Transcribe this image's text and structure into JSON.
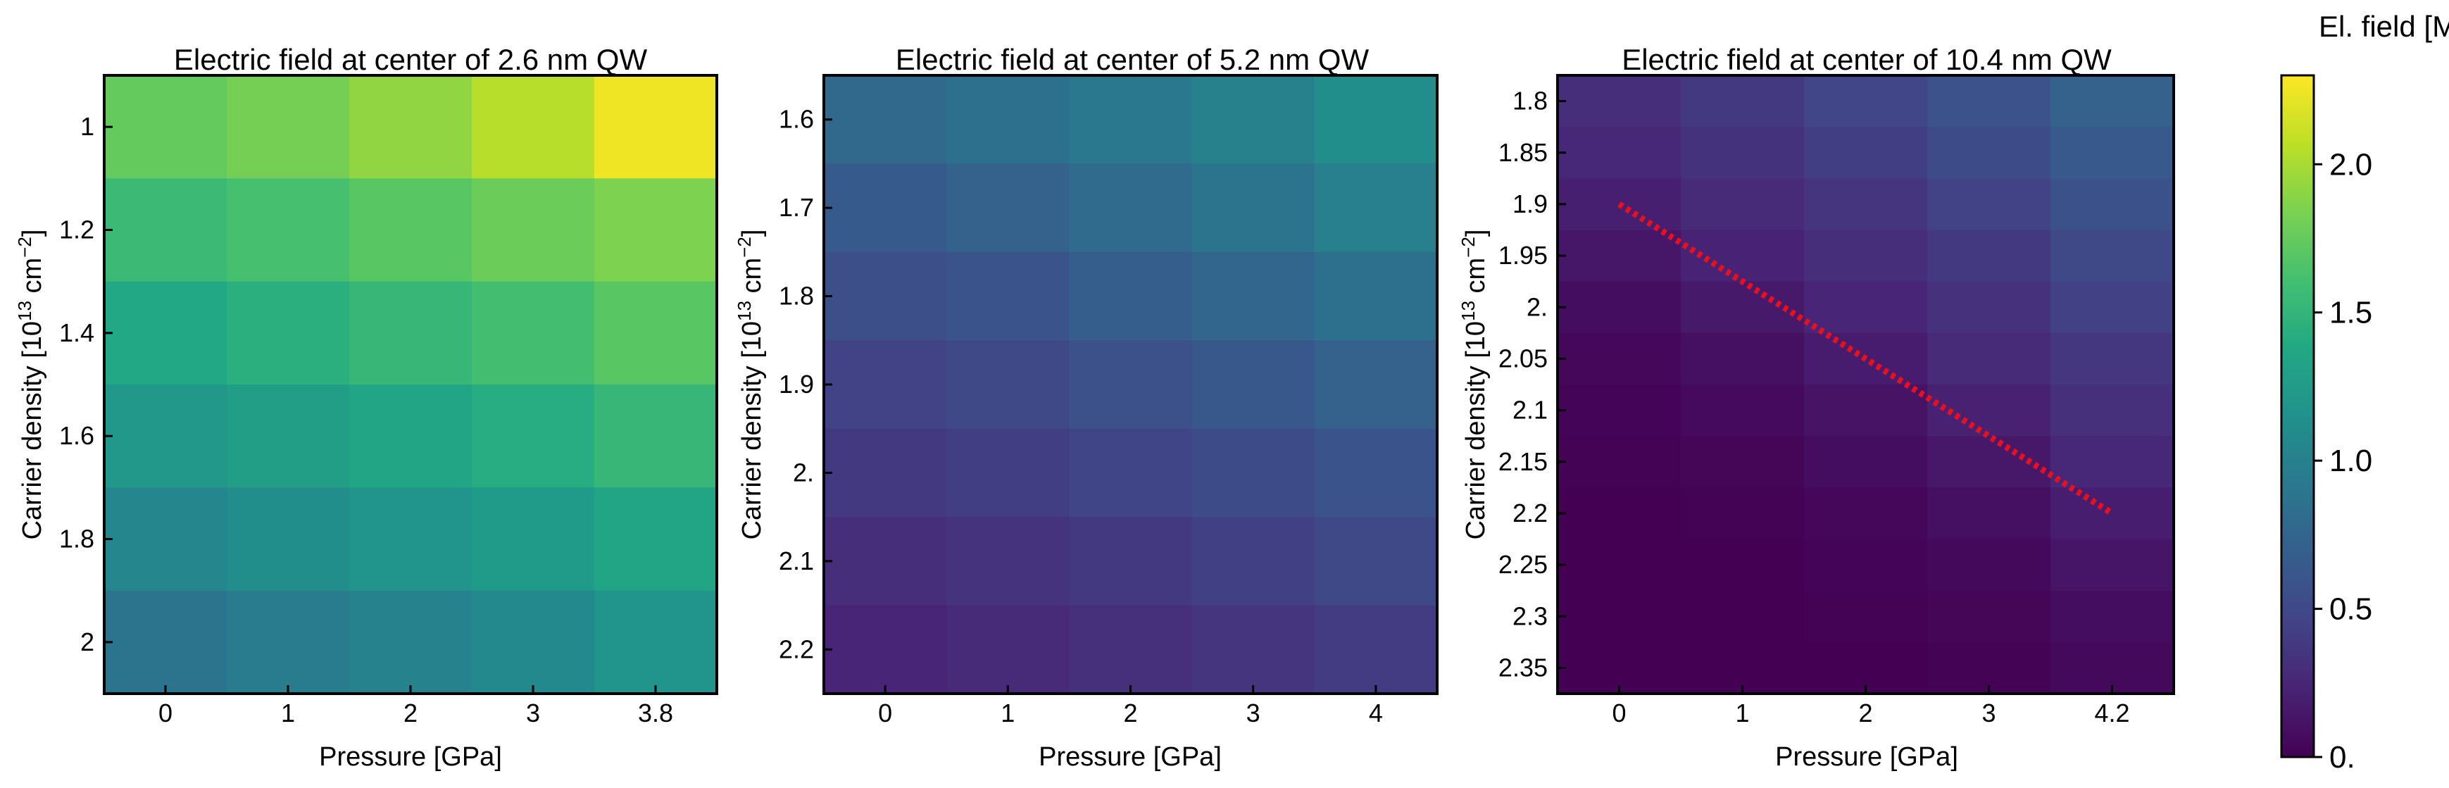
{
  "colorbar": {
    "label": "El. field [MV/cm]",
    "range": [
      0,
      2.3
    ],
    "ticks": [
      {
        "value": 0,
        "label": "0."
      },
      {
        "value": 0.5,
        "label": "0.5"
      },
      {
        "value": 1.0,
        "label": "1.0"
      },
      {
        "value": 1.5,
        "label": "1.5"
      },
      {
        "value": 2.0,
        "label": "2.0"
      }
    ],
    "colormap": "viridis"
  },
  "chart_data": [
    {
      "type": "heatmap",
      "title": "Electric field at center of 2.6 nm QW",
      "xlabel": "Pressure [GPa]",
      "ylabel_main": "Carrier density [10",
      "ylabel_exp1": "13",
      "ylabel_mid": " cm",
      "ylabel_exp2": "−2",
      "ylabel_end": "]",
      "x_categories": [
        "0",
        "1",
        "2",
        "3",
        "3.8"
      ],
      "y_categories": [
        "1",
        "1.2",
        "1.4",
        "1.6",
        "1.8",
        "2"
      ],
      "values": [
        [
          1.75,
          1.82,
          1.92,
          2.05,
          2.25
        ],
        [
          1.55,
          1.62,
          1.7,
          1.78,
          1.85
        ],
        [
          1.38,
          1.45,
          1.52,
          1.6,
          1.7
        ],
        [
          1.22,
          1.28,
          1.35,
          1.42,
          1.52
        ],
        [
          1.05,
          1.12,
          1.18,
          1.25,
          1.35
        ],
        [
          0.88,
          0.95,
          1.02,
          1.08,
          1.18
        ]
      ]
    },
    {
      "type": "heatmap",
      "title": "Electric field at center of 5.2 nm QW",
      "xlabel": "Pressure [GPa]",
      "ylabel_main": "Carrier density [10",
      "ylabel_exp1": "13",
      "ylabel_mid": " cm",
      "ylabel_exp2": "−2",
      "ylabel_end": "]",
      "x_categories": [
        "0",
        "1",
        "2",
        "3",
        "4"
      ],
      "y_categories": [
        "1.6",
        "1.7",
        "1.8",
        "1.9",
        "2.",
        "2.1",
        "2.2"
      ],
      "values": [
        [
          0.78,
          0.85,
          0.92,
          1.0,
          1.12
        ],
        [
          0.65,
          0.72,
          0.8,
          0.88,
          0.98
        ],
        [
          0.55,
          0.6,
          0.68,
          0.75,
          0.85
        ],
        [
          0.45,
          0.5,
          0.56,
          0.63,
          0.72
        ],
        [
          0.38,
          0.42,
          0.47,
          0.53,
          0.6
        ],
        [
          0.3,
          0.34,
          0.38,
          0.43,
          0.5
        ],
        [
          0.24,
          0.27,
          0.31,
          0.35,
          0.4
        ]
      ]
    },
    {
      "type": "heatmap",
      "title": "Electric field at center of 10.4 nm QW",
      "xlabel": "Pressure [GPa]",
      "ylabel_main": "Carrier density [10",
      "ylabel_exp1": "13",
      "ylabel_mid": " cm",
      "ylabel_exp2": "−2",
      "ylabel_end": "]",
      "x_categories": [
        "0",
        "1",
        "2",
        "3",
        "4.2"
      ],
      "y_categories": [
        "1.8",
        "1.85",
        "1.9",
        "1.95",
        "2.",
        "2.05",
        "2.1",
        "2.15",
        "2.2",
        "2.25",
        "2.3",
        "2.35"
      ],
      "values": [
        [
          0.3,
          0.38,
          0.48,
          0.58,
          0.72
        ],
        [
          0.25,
          0.33,
          0.42,
          0.52,
          0.64
        ],
        [
          0.2,
          0.27,
          0.35,
          0.45,
          0.57
        ],
        [
          0.14,
          0.22,
          0.3,
          0.38,
          0.5
        ],
        [
          0.08,
          0.16,
          0.24,
          0.32,
          0.44
        ],
        [
          0.04,
          0.1,
          0.18,
          0.27,
          0.37
        ],
        [
          0.02,
          0.06,
          0.12,
          0.21,
          0.31
        ],
        [
          0.01,
          0.03,
          0.08,
          0.15,
          0.25
        ],
        [
          0.0,
          0.01,
          0.04,
          0.1,
          0.19
        ],
        [
          0.0,
          0.0,
          0.02,
          0.05,
          0.13
        ],
        [
          0.0,
          0.0,
          0.01,
          0.03,
          0.08
        ],
        [
          0.0,
          0.0,
          0.0,
          0.01,
          0.05
        ]
      ],
      "overlay_line": {
        "style": "dotted",
        "color": "#e8101e",
        "from": {
          "x": "0",
          "y": "1.9"
        },
        "to": {
          "x": "4.2",
          "y": "2.2"
        }
      }
    }
  ]
}
